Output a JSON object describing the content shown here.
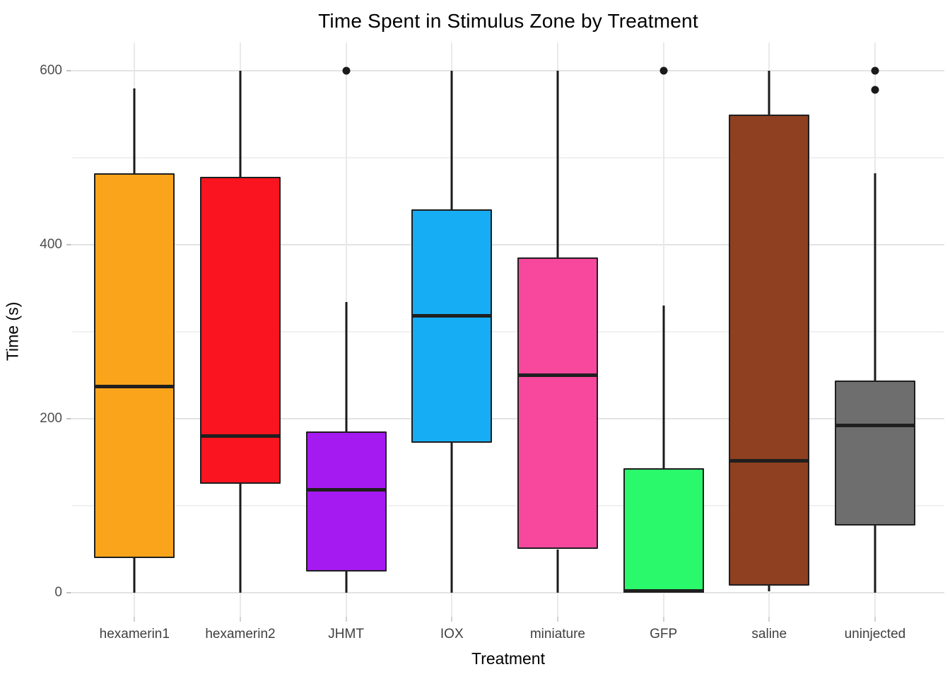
{
  "chart_data": {
    "type": "boxplot",
    "title": "Time Spent in Stimulus Zone by Treatment",
    "xlabel": "Treatment",
    "ylabel": "Time (s)",
    "ylim": [
      0,
      620
    ],
    "grid": true,
    "legend": "none",
    "y_major_ticks": [
      0,
      200,
      400,
      600
    ],
    "y_minor_gridlines": [
      100,
      300,
      500
    ],
    "categories": [
      "hexamerin1",
      "hexamerin2",
      "JHMT",
      "IOX",
      "miniature",
      "GFP",
      "saline",
      "uninjected"
    ],
    "series": [
      {
        "name": "hexamerin1",
        "color": "#F9A41B",
        "whisker_low": 0,
        "q1": 40,
        "median": 237,
        "q3": 482,
        "whisker_high": 580,
        "outliers": []
      },
      {
        "name": "hexamerin2",
        "color": "#F9141F",
        "whisker_low": 0,
        "q1": 125,
        "median": 180,
        "q3": 478,
        "whisker_high": 600,
        "outliers": []
      },
      {
        "name": "JHMT",
        "color": "#A61AF2",
        "whisker_low": 0,
        "q1": 24,
        "median": 118,
        "q3": 185,
        "whisker_high": 334,
        "outliers": [
          600
        ]
      },
      {
        "name": "IOX",
        "color": "#17ADF5",
        "whisker_low": 0,
        "q1": 172,
        "median": 318,
        "q3": 441,
        "whisker_high": 600,
        "outliers": []
      },
      {
        "name": "miniature",
        "color": "#F8489E",
        "whisker_low": 0,
        "q1": 50,
        "median": 250,
        "q3": 385,
        "whisker_high": 600,
        "outliers": []
      },
      {
        "name": "GFP",
        "color": "#29F96B",
        "whisker_low": 0,
        "q1": 0,
        "median": 2,
        "q3": 143,
        "whisker_high": 330,
        "outliers": [
          600
        ]
      },
      {
        "name": "saline",
        "color": "#8E4020",
        "whisker_low": 2,
        "q1": 8,
        "median": 152,
        "q3": 550,
        "whisker_high": 600,
        "outliers": []
      },
      {
        "name": "uninjected",
        "color": "#6E6E6E",
        "whisker_low": 0,
        "q1": 77,
        "median": 192,
        "q3": 244,
        "whisker_high": 482,
        "outliers": [
          600,
          578
        ]
      }
    ]
  },
  "colors": {
    "background": "#FFFFFF",
    "box_border": "#1F1F1F",
    "grid_major": "#E3E3E3",
    "grid_minor": "#F0F0F0",
    "tick_label": "#4D4D4D",
    "axis_text": "#000000"
  }
}
